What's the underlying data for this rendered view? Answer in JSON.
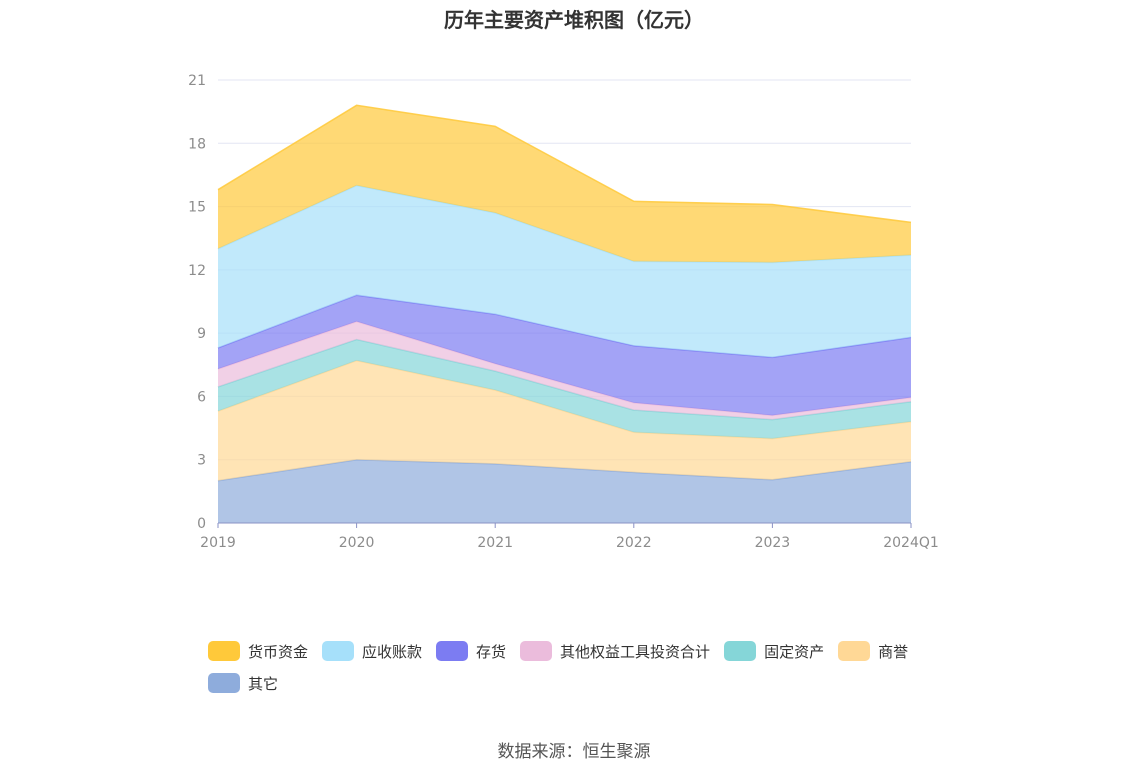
{
  "chart_data": {
    "type": "area",
    "stacked": true,
    "title": "历年主要资产堆积图（亿元）",
    "categories": [
      "2019",
      "2020",
      "2021",
      "2022",
      "2023",
      "2024Q1"
    ],
    "ylim": [
      0,
      21
    ],
    "yticks": [
      "0",
      "3",
      "6",
      "9",
      "12",
      "15",
      "18",
      "21"
    ],
    "grid": true,
    "legend_position": "bottom",
    "series": [
      {
        "name": "其它",
        "color": "#8eacdc",
        "values": [
          2.0,
          3.0,
          2.8,
          2.4,
          2.05,
          2.9
        ]
      },
      {
        "name": "商誉",
        "color": "#ffd896",
        "values": [
          3.3,
          4.7,
          3.5,
          1.9,
          1.95,
          1.9
        ]
      },
      {
        "name": "固定资产",
        "color": "#85d6d8",
        "values": [
          1.15,
          1.0,
          0.9,
          1.05,
          0.9,
          0.95
        ]
      },
      {
        "name": "其他权益工具投资合计",
        "color": "#ebbcdc",
        "values": [
          0.85,
          0.85,
          0.35,
          0.35,
          0.2,
          0.2
        ]
      },
      {
        "name": "存货",
        "color": "#7c7cf2",
        "values": [
          1.0,
          1.25,
          2.35,
          2.7,
          2.75,
          2.85
        ]
      },
      {
        "name": "应收账款",
        "color": "#a6e0fa",
        "values": [
          4.7,
          5.2,
          4.8,
          4.0,
          4.5,
          3.9
        ]
      },
      {
        "name": "货币资金",
        "color": "#ffc93a",
        "values": [
          2.8,
          3.8,
          4.1,
          2.85,
          2.75,
          1.55
        ]
      }
    ]
  },
  "legend_order": [
    "货币资金",
    "应收账款",
    "存货",
    "其他权益工具投资合计",
    "固定资产",
    "商誉",
    "其它"
  ],
  "source": "数据来源：恒生聚源"
}
